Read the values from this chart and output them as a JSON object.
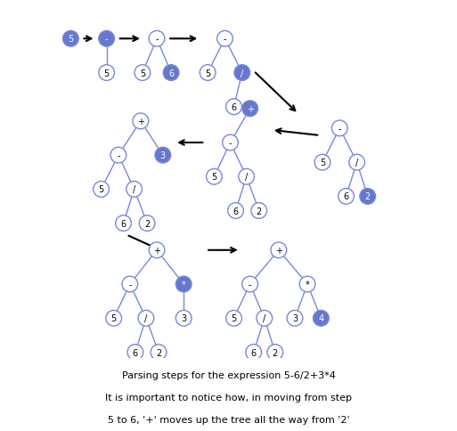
{
  "blue": "#6677cc",
  "white": "#ffffff",
  "ec": "#7788dd",
  "caption": [
    "Parsing steps for the expression 5-6/2+3*4",
    "It is important to notice how, in moving from step",
    "5 to 6, '+' moves up the tree all the way from '2'"
  ]
}
